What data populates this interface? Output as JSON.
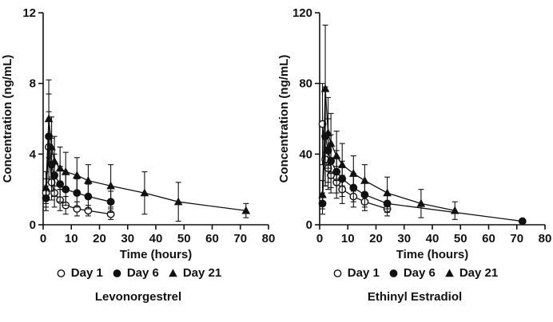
{
  "figure": {
    "background": "#ffffff",
    "ink_color": "#111111"
  },
  "chart_data": [
    {
      "type": "line",
      "title": "Levonorgestrel",
      "xlabel": "Time (hours)",
      "ylabel": "Concentration (ng/mL)",
      "xlim": [
        0,
        80
      ],
      "ylim": [
        0,
        12
      ],
      "xticks": [
        0,
        10,
        20,
        30,
        40,
        50,
        60,
        70,
        80
      ],
      "yticks": [
        0,
        4,
        8,
        12
      ],
      "grid": false,
      "error_bars": true,
      "legend_position": "bottom",
      "series": [
        {
          "name": "Day 1",
          "marker": "open-circle",
          "x": [
            1,
            2,
            3,
            4,
            6,
            8,
            12,
            16,
            24
          ],
          "y": [
            1.8,
            4.4,
            2.4,
            1.8,
            1.4,
            1.1,
            0.9,
            0.8,
            0.6
          ],
          "err": [
            0.8,
            2.0,
            1.0,
            0.8,
            0.6,
            0.5,
            0.4,
            0.3,
            0.3
          ]
        },
        {
          "name": "Day 6",
          "marker": "filled-circle",
          "x": [
            1,
            2,
            3,
            4,
            6,
            8,
            12,
            16,
            24
          ],
          "y": [
            1.5,
            5.0,
            3.4,
            2.8,
            2.3,
            2.0,
            1.8,
            1.6,
            1.3
          ],
          "err": [
            0.7,
            2.4,
            1.5,
            1.2,
            1.0,
            0.9,
            0.8,
            0.7,
            0.6
          ]
        },
        {
          "name": "Day 21",
          "marker": "filled-triangle",
          "x": [
            1,
            2,
            3,
            4,
            6,
            8,
            12,
            16,
            24,
            36,
            48,
            72
          ],
          "y": [
            2.1,
            6.0,
            4.4,
            3.6,
            3.2,
            3.0,
            2.8,
            2.5,
            2.2,
            1.8,
            1.3,
            0.8
          ],
          "err": [
            0.9,
            2.2,
            1.7,
            1.4,
            1.2,
            1.1,
            1.0,
            0.9,
            1.2,
            1.2,
            1.1,
            0.4
          ]
        }
      ]
    },
    {
      "type": "line",
      "title": "Ethinyl Estradiol",
      "xlabel": "Time (hours)",
      "ylabel": "Concentration (ng/mL)",
      "xlim": [
        0,
        80
      ],
      "ylim": [
        0,
        120
      ],
      "xticks": [
        0,
        10,
        20,
        30,
        40,
        50,
        60,
        70,
        80
      ],
      "yticks": [
        0,
        40,
        80,
        120
      ],
      "grid": false,
      "error_bars": true,
      "legend_position": "bottom",
      "series": [
        {
          "name": "Day 1",
          "marker": "open-circle",
          "x": [
            1,
            2,
            3,
            4,
            6,
            8,
            12,
            16,
            24
          ],
          "y": [
            57,
            37,
            32,
            28,
            24,
            20,
            16,
            13,
            9
          ],
          "err": [
            23,
            15,
            12,
            10,
            9,
            8,
            6,
            5,
            4
          ]
        },
        {
          "name": "Day 6",
          "marker": "filled-circle",
          "x": [
            1,
            2,
            3,
            4,
            6,
            8,
            12,
            16,
            24,
            72
          ],
          "y": [
            12,
            50,
            42,
            36,
            30,
            26,
            21,
            17,
            12,
            2
          ],
          "err": [
            6,
            28,
            18,
            15,
            12,
            10,
            8,
            7,
            5,
            1
          ]
        },
        {
          "name": "Day 21",
          "marker": "filled-triangle",
          "x": [
            1,
            2,
            3,
            4,
            6,
            8,
            12,
            16,
            24,
            36,
            48
          ],
          "y": [
            17,
            77,
            52,
            46,
            39,
            34,
            29,
            25,
            18,
            12,
            8
          ],
          "err": [
            8,
            36,
            20,
            17,
            14,
            12,
            10,
            9,
            9,
            8,
            5
          ]
        }
      ]
    }
  ]
}
